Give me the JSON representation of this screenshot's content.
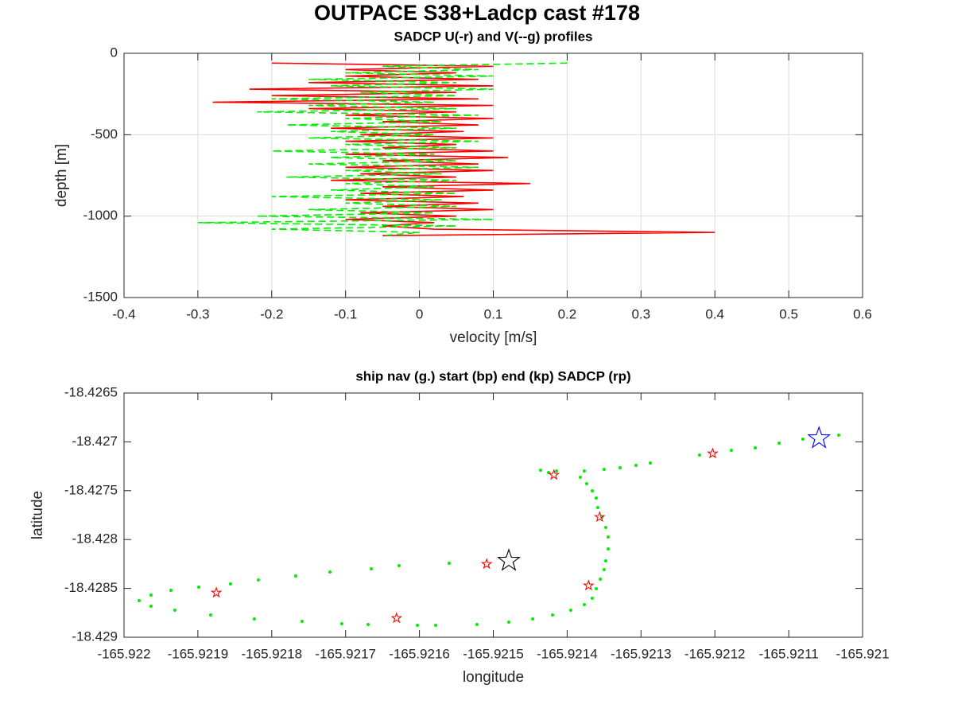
{
  "title": "OUTPACE S38+Ladcp cast #178",
  "chart_data": [
    {
      "type": "line",
      "title": "SADCP U(-r) and V(--g) profiles",
      "xlabel": "velocity [m/s]",
      "ylabel": "depth [m]",
      "xlim": [
        -0.4,
        0.6
      ],
      "xticks": [
        -0.4,
        -0.3,
        -0.2,
        -0.1,
        0,
        0.1,
        0.2,
        0.3,
        0.4,
        0.5,
        0.6
      ],
      "ylim": [
        -1500,
        0
      ],
      "yticks": [
        -1500,
        -1000,
        -500,
        0
      ],
      "grid": true,
      "depth": [
        -60,
        -80,
        -100,
        -120,
        -140,
        -160,
        -180,
        -200,
        -220,
        -240,
        -260,
        -280,
        -300,
        -320,
        -340,
        -360,
        -380,
        -400,
        -420,
        -440,
        -460,
        -480,
        -500,
        -520,
        -540,
        -560,
        -580,
        -600,
        -620,
        -640,
        -660,
        -680,
        -700,
        -720,
        -740,
        -760,
        -780,
        -800,
        -820,
        -840,
        -860,
        -880,
        -900,
        -920,
        -940,
        -960,
        -980,
        -1000,
        -1020,
        -1040,
        -1060,
        -1080,
        -1100,
        -1120
      ],
      "series": [
        {
          "color": "#ff0000",
          "dashed": false,
          "values": [
            -0.2,
            0.1,
            -0.1,
            0.05,
            -0.1,
            0.08,
            -0.15,
            0.1,
            -0.23,
            0.05,
            -0.2,
            0.08,
            -0.28,
            0.1,
            -0.15,
            0.05,
            -0.1,
            0.1,
            -0.05,
            0.08,
            -0.12,
            0.06,
            -0.08,
            0.1,
            -0.1,
            0.05,
            -0.05,
            0.1,
            -0.1,
            0.12,
            -0.05,
            0.08,
            -0.1,
            0.1,
            -0.08,
            0.05,
            -0.12,
            0.15,
            -0.05,
            0.1,
            -0.08,
            0.06,
            -0.1,
            0.08,
            -0.05,
            0.1,
            -0.08,
            0.05,
            -0.1,
            0.02,
            -0.05,
            0.02,
            0.4,
            -0.05
          ]
        },
        {
          "color": "#00ee00",
          "dashed": true,
          "values": [
            0.2,
            -0.05,
            0.08,
            -0.1,
            0.1,
            -0.15,
            0.05,
            -0.12,
            0.1,
            -0.08,
            0.05,
            -0.2,
            0.02,
            -0.15,
            0.05,
            -0.22,
            0.08,
            -0.1,
            0.03,
            -0.18,
            0.05,
            -0.12,
            0.02,
            -0.15,
            0.08,
            -0.1,
            0.05,
            -0.2,
            0.02,
            -0.12,
            0.05,
            -0.15,
            0.08,
            -0.1,
            0.03,
            -0.18,
            0.05,
            -0.1,
            0.02,
            -0.12,
            0.05,
            -0.2,
            0.03,
            -0.1,
            0.05,
            -0.15,
            0.02,
            -0.22,
            0.1,
            -0.3,
            0.05,
            -0.2,
            0.0,
            -0.05
          ]
        }
      ]
    },
    {
      "type": "scatter",
      "title": "ship nav (g.) start (bp) end (kp) SADCP (rp)",
      "xlabel": "longitude",
      "ylabel": "latitude",
      "xlim": [
        -165.922,
        -165.921
      ],
      "xticks": [
        -165.922,
        -165.9219,
        -165.9218,
        -165.9217,
        -165.9216,
        -165.9215,
        -165.9214,
        -165.9213,
        -165.9212,
        -165.9211,
        -165.921
      ],
      "ylim": [
        -18.429,
        -18.4265
      ],
      "yticks": [
        -18.429,
        -18.4285,
        -18.428,
        -18.4275,
        -18.427,
        -18.4265
      ],
      "grid": false,
      "series": [
        {
          "color": "#00ee00",
          "marker": "dot",
          "x": [
            -165.9210323,
            -165.9210808,
            -165.921113,
            -165.9211453,
            -165.9211776,
            -165.9212207,
            -165.9212874,
            -165.9213068,
            -165.9213283,
            -165.9213499,
            -165.9213768,
            -165.9214144,
            -165.921436,
            -165.9214252,
            -165.9213821,
            -165.9213735,
            -165.921366,
            -165.9213606,
            -165.9213585,
            -165.9213531,
            -165.9213477,
            -165.9213445,
            -165.9213445,
            -165.9213477,
            -165.9213499,
            -165.9213552,
            -165.9213606,
            -165.921366,
            -165.9213768,
            -165.9213951,
            -165.9214198,
            -165.9214467,
            -165.921479,
            -165.9215221,
            -165.921578,
            -165.9216028,
            -165.9216695,
            -165.9217051,
            -165.9217589,
            -165.9218235,
            -165.9218827,
            -165.9219311,
            -165.9219634,
            -165.9219795,
            -165.9219634,
            -165.9219365,
            -165.9218988,
            -165.9218558,
            -165.9218181,
            -165.9217675,
            -165.9217212,
            -165.9216652,
            -165.9216276,
            -165.9215598
          ],
          "values": [
            -18.4269316,
            -18.4269723,
            -18.427013,
            -18.4270619,
            -18.4270863,
            -18.4271352,
            -18.4272166,
            -18.427241,
            -18.4272654,
            -18.4272817,
            -18.427298,
            -18.427298,
            -18.4272899,
            -18.4273143,
            -18.4273632,
            -18.4274283,
            -18.4275016,
            -18.4275749,
            -18.4276726,
            -18.4277703,
            -18.4278762,
            -18.4279739,
            -18.428096,
            -18.4282182,
            -18.4283077,
            -18.4284055,
            -18.4285032,
            -18.4286009,
            -18.428666,
            -18.428723,
            -18.4287719,
            -18.4288126,
            -18.4288452,
            -18.4288696,
            -18.4288778,
            -18.4288778,
            -18.4288696,
            -18.4288615,
            -18.428837,
            -18.4288126,
            -18.4287719,
            -18.428723,
            -18.4286823,
            -18.4286253,
            -18.4285683,
            -18.4285195,
            -18.4284869,
            -18.4284543,
            -18.4284136,
            -18.4283729,
            -18.4283322,
            -18.4282996,
            -18.428267,
            -18.4282426
          ]
        },
        {
          "color": "#ff0000",
          "marker": "star-small",
          "x": [
            -165.921875,
            -165.921631,
            -165.921509,
            -165.921418,
            -165.921356,
            -165.921371,
            -165.921203
          ],
          "values": [
            -18.428544,
            -18.428805,
            -18.428251,
            -18.427339,
            -18.42777,
            -18.428471,
            -18.427119
          ]
        },
        {
          "color": "#0000ff",
          "marker": "star-large",
          "x": [
            -165.921059
          ],
          "values": [
            -18.426964
          ]
        },
        {
          "color": "#000000",
          "marker": "star-large",
          "x": [
            -165.921479
          ],
          "values": [
            -18.428218
          ]
        }
      ]
    }
  ]
}
